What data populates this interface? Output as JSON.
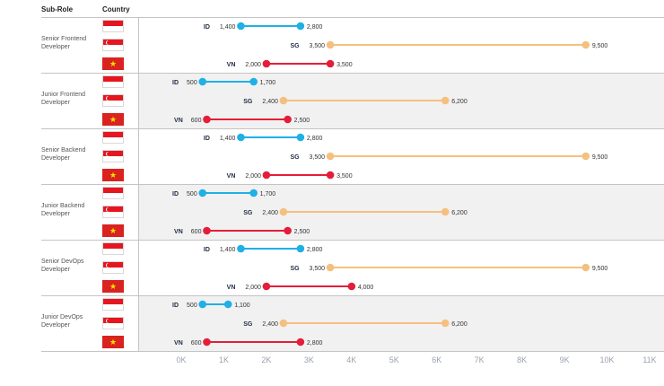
{
  "header": {
    "sub_role": "Sub-Role",
    "country": "Country"
  },
  "colors": {
    "ID": "#1fb0e6",
    "SG": "#f5c07e",
    "VN": "#e41e3a",
    "band": "#f1f1f1",
    "rule": "#c4c4c4",
    "tick": "#9aa2ad"
  },
  "chart_data": {
    "type": "dumbbell",
    "title": "",
    "xlabel": "",
    "ylabel": "",
    "xlim": [
      0,
      11000
    ],
    "x_ticks": [
      0,
      1000,
      2000,
      3000,
      4000,
      5000,
      6000,
      7000,
      8000,
      9000,
      10000,
      11000
    ],
    "x_tick_labels": [
      "0K",
      "1K",
      "2K",
      "3K",
      "4K",
      "5K",
      "6K",
      "7K",
      "8K",
      "9K",
      "10K",
      "11K"
    ],
    "groups": [
      {
        "sub_role": "Senior Frontend Developer",
        "rows": [
          {
            "country": "ID",
            "min": 1400,
            "max": 2800,
            "min_label": "1,400",
            "max_label": "2,800"
          },
          {
            "country": "SG",
            "min": 3500,
            "max": 9500,
            "min_label": "3,500",
            "max_label": "9,500"
          },
          {
            "country": "VN",
            "min": 2000,
            "max": 3500,
            "min_label": "2,000",
            "max_label": "3,500"
          }
        ]
      },
      {
        "sub_role": "Junior Frontend Developer",
        "rows": [
          {
            "country": "ID",
            "min": 500,
            "max": 1700,
            "min_label": "500",
            "max_label": "1,700"
          },
          {
            "country": "SG",
            "min": 2400,
            "max": 6200,
            "min_label": "2,400",
            "max_label": "6,200"
          },
          {
            "country": "VN",
            "min": 600,
            "max": 2500,
            "min_label": "600",
            "max_label": "2,500"
          }
        ]
      },
      {
        "sub_role": "Senior Backend Developer",
        "rows": [
          {
            "country": "ID",
            "min": 1400,
            "max": 2800,
            "min_label": "1,400",
            "max_label": "2,800"
          },
          {
            "country": "SG",
            "min": 3500,
            "max": 9500,
            "min_label": "3,500",
            "max_label": "9,500"
          },
          {
            "country": "VN",
            "min": 2000,
            "max": 3500,
            "min_label": "2,000",
            "max_label": "3,500"
          }
        ]
      },
      {
        "sub_role": "Junior Backend Developer",
        "rows": [
          {
            "country": "ID",
            "min": 500,
            "max": 1700,
            "min_label": "500",
            "max_label": "1,700"
          },
          {
            "country": "SG",
            "min": 2400,
            "max": 6200,
            "min_label": "2,400",
            "max_label": "6,200"
          },
          {
            "country": "VN",
            "min": 600,
            "max": 2500,
            "min_label": "600",
            "max_label": "2,500"
          }
        ]
      },
      {
        "sub_role": "Senior DevOps Developer",
        "rows": [
          {
            "country": "ID",
            "min": 1400,
            "max": 2800,
            "min_label": "1,400",
            "max_label": "2,800"
          },
          {
            "country": "SG",
            "min": 3500,
            "max": 9500,
            "min_label": "3,500",
            "max_label": "9,500"
          },
          {
            "country": "VN",
            "min": 2000,
            "max": 4000,
            "min_label": "2,000",
            "max_label": "4,000"
          }
        ]
      },
      {
        "sub_role": "Junior DevOps Developer",
        "rows": [
          {
            "country": "ID",
            "min": 500,
            "max": 1100,
            "min_label": "500",
            "max_label": "1,100"
          },
          {
            "country": "SG",
            "min": 2400,
            "max": 6200,
            "min_label": "2,400",
            "max_label": "6,200"
          },
          {
            "country": "VN",
            "min": 600,
            "max": 2800,
            "min_label": "600",
            "max_label": "2,800"
          }
        ]
      }
    ]
  }
}
